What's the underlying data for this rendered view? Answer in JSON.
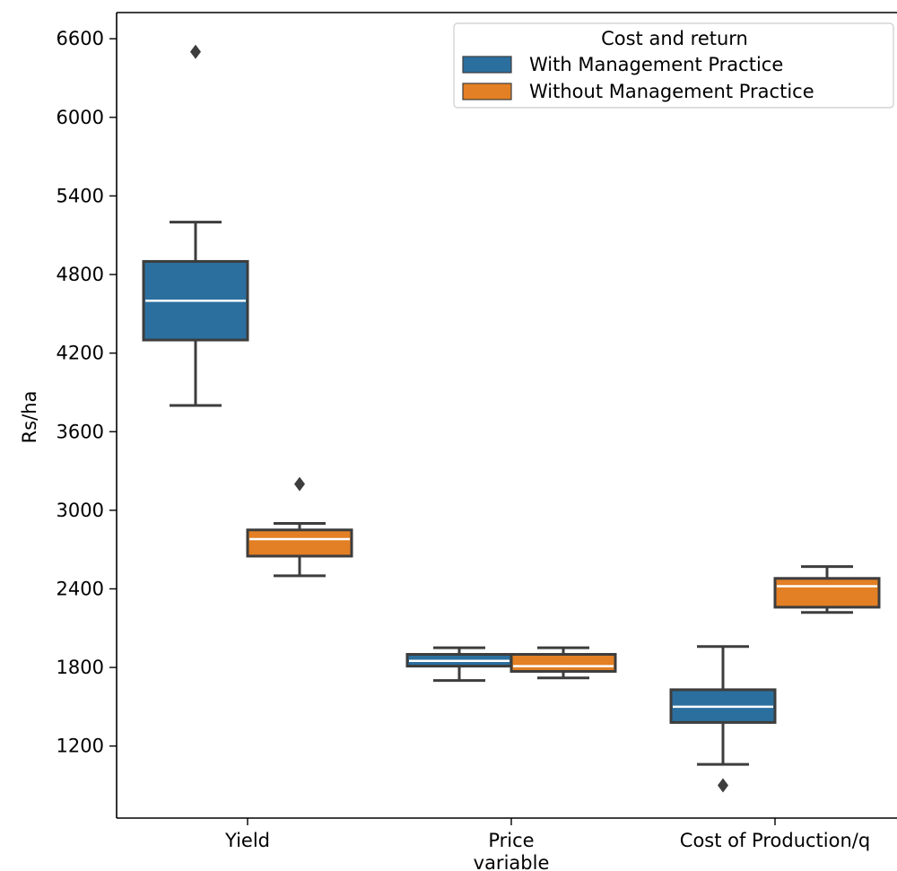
{
  "chart_data": {
    "type": "boxplot",
    "title": "",
    "xlabel": "variable",
    "ylabel": "Rs/ha",
    "categories": [
      "Yield",
      "Price",
      "Cost of Production/q"
    ],
    "yticks": [
      1200,
      1800,
      2400,
      3000,
      3600,
      4200,
      4800,
      5400,
      6000,
      6600
    ],
    "ylim": [
      650,
      6800
    ],
    "grid": false,
    "legend": {
      "title": "Cost and return",
      "placement": "top-right"
    },
    "series": [
      {
        "name": "With Management Practice",
        "color": "#2b6f9e",
        "boxes": [
          {
            "category": "Yield",
            "whisker_low": 3800,
            "q1": 4300,
            "median": 4600,
            "q3": 4900,
            "whisker_high": 5200,
            "outliers": [
              6500
            ]
          },
          {
            "category": "Price",
            "whisker_low": 1700,
            "q1": 1810,
            "median": 1850,
            "q3": 1900,
            "whisker_high": 1950,
            "outliers": []
          },
          {
            "category": "Cost of Production/q",
            "whisker_low": 1060,
            "q1": 1380,
            "median": 1500,
            "q3": 1630,
            "whisker_high": 1960,
            "outliers": [
              900
            ]
          }
        ]
      },
      {
        "name": "Without Management Practice",
        "color": "#e37f24",
        "boxes": [
          {
            "category": "Yield",
            "whisker_low": 2500,
            "q1": 2650,
            "median": 2780,
            "q3": 2850,
            "whisker_high": 2900,
            "outliers": [
              3200
            ]
          },
          {
            "category": "Price",
            "whisker_low": 1720,
            "q1": 1770,
            "median": 1810,
            "q3": 1900,
            "whisker_high": 1950,
            "outliers": []
          },
          {
            "category": "Cost of Production/q",
            "whisker_low": 2220,
            "q1": 2260,
            "median": 2420,
            "q3": 2480,
            "whisker_high": 2570,
            "outliers": []
          }
        ]
      }
    ]
  }
}
